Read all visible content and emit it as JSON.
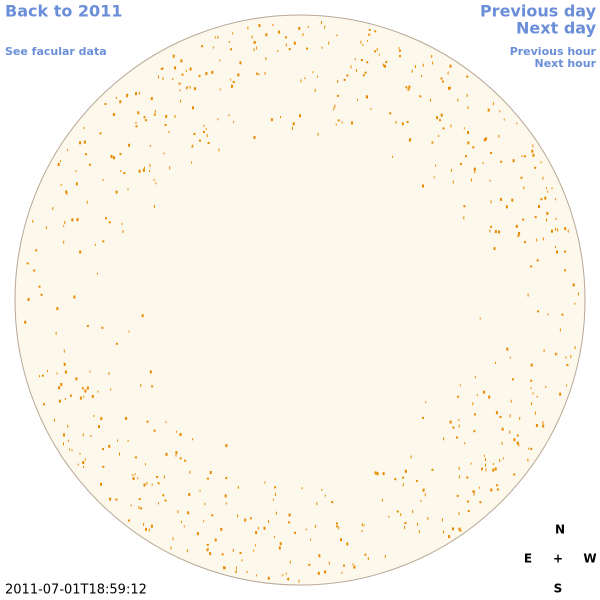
{
  "header": {
    "back_link": "Back to 2011",
    "facular_link": "See facular data",
    "previous_day": "Previous day",
    "next_day": "Next day",
    "previous_hour": "Previous hour",
    "next_hour": "Next hour"
  },
  "timestamp": "2011-07-01T18:59:12",
  "compass": {
    "north": "N",
    "east": "E",
    "center": "+",
    "west": "W",
    "south": "S"
  }
}
